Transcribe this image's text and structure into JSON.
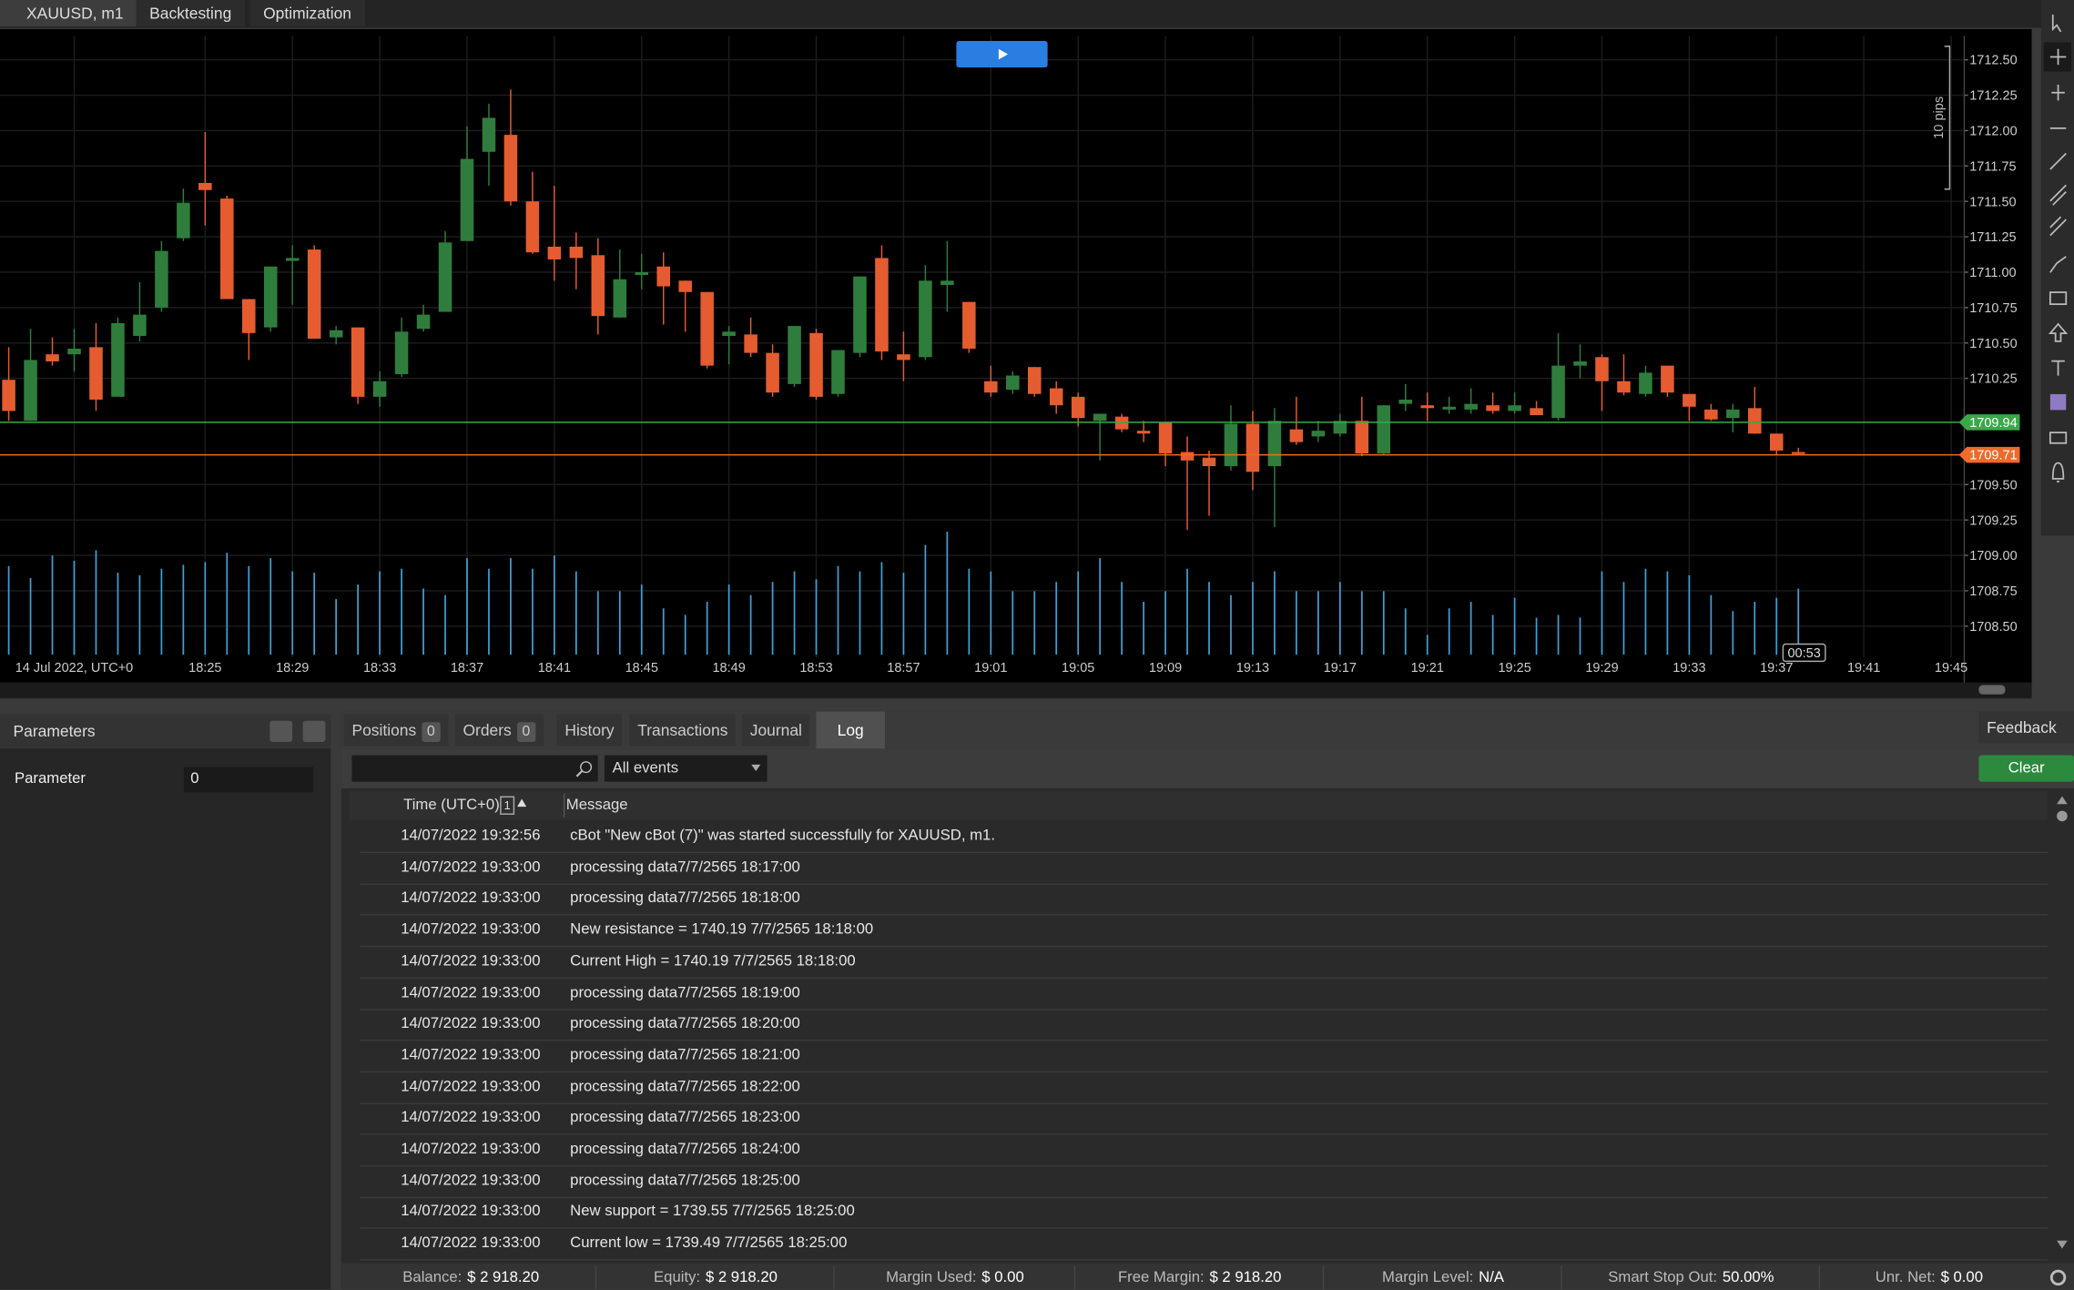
{
  "top_tabs": [
    "XAUUSD, m1",
    "Backtesting",
    "Optimization"
  ],
  "chart_data": {
    "type": "candlestick",
    "x": [
      "18:16",
      "18:17",
      "18:18",
      "18:19",
      "18:20",
      "18:21",
      "18:22",
      "18:23",
      "18:24",
      "18:25",
      "18:26",
      "18:27",
      "18:28",
      "18:29",
      "18:30",
      "18:31",
      "18:32",
      "18:33",
      "18:34",
      "18:35",
      "18:36",
      "18:37",
      "18:38",
      "18:39",
      "18:40",
      "18:41",
      "18:42",
      "18:43",
      "18:44",
      "18:45",
      "18:46",
      "18:47",
      "18:48",
      "18:49",
      "18:50",
      "18:51",
      "18:52",
      "18:53",
      "18:54",
      "18:55",
      "18:56",
      "18:57",
      "18:58",
      "18:59",
      "19:00",
      "19:01",
      "19:02",
      "19:03",
      "19:04",
      "19:05",
      "19:06",
      "19:07",
      "19:08",
      "19:09",
      "19:10",
      "19:11",
      "19:12",
      "19:13",
      "19:14",
      "19:15",
      "19:16",
      "19:17",
      "19:18",
      "19:19",
      "19:20",
      "19:21",
      "19:22",
      "19:23",
      "19:24",
      "19:25",
      "19:26",
      "19:27",
      "19:28",
      "19:29",
      "19:30",
      "19:31",
      "19:32",
      "19:33",
      "19:34",
      "19:35",
      "19:36",
      "19:37",
      "19:38"
    ],
    "open": [
      1710.24,
      1709.95,
      1710.42,
      1710.42,
      1710.47,
      1710.12,
      1710.55,
      1710.75,
      1711.24,
      1711.63,
      1711.52,
      1710.81,
      1710.61,
      1711.08,
      1711.16,
      1710.54,
      1710.61,
      1710.12,
      1710.28,
      1710.6,
      1710.72,
      1711.22,
      1711.85,
      1711.97,
      1711.5,
      1711.18,
      1711.18,
      1711.12,
      1710.68,
      1710.98,
      1711.04,
      1710.94,
      1710.86,
      1710.55,
      1710.56,
      1710.43,
      1710.21,
      1710.57,
      1710.14,
      1710.43,
      1711.1,
      1710.42,
      1710.4,
      1710.91,
      1710.79,
      1710.23,
      1710.17,
      1710.33,
      1710.18,
      1710.12,
      1709.95,
      1709.98,
      1709.88,
      1709.94,
      1709.73,
      1709.69,
      1709.63,
      1709.93,
      1709.63,
      1709.89,
      1709.84,
      1709.86,
      1709.95,
      1709.72,
      1710.07,
      1710.06,
      1710.03,
      1710.03,
      1710.06,
      1710.02,
      1710.04,
      1709.97,
      1710.34,
      1710.4,
      1710.23,
      1710.14,
      1710.34,
      1710.14,
      1710.03,
      1709.97,
      1710.04,
      1709.86,
      1709.73
    ],
    "high": [
      1710.47,
      1710.6,
      1710.54,
      1710.6,
      1710.64,
      1710.68,
      1710.93,
      1711.22,
      1711.59,
      1711.99,
      1711.54,
      1710.81,
      1711.04,
      1711.19,
      1711.19,
      1710.62,
      1710.61,
      1710.3,
      1710.68,
      1710.77,
      1711.29,
      1712.03,
      1712.19,
      1712.29,
      1711.71,
      1711.61,
      1711.28,
      1711.24,
      1711.16,
      1711.13,
      1711.14,
      1710.94,
      1710.86,
      1710.62,
      1710.68,
      1710.49,
      1710.62,
      1710.6,
      1710.45,
      1710.97,
      1711.19,
      1710.58,
      1711.05,
      1711.22,
      1710.79,
      1710.34,
      1710.3,
      1710.33,
      1710.23,
      1710.15,
      1710.0,
      1710.0,
      1709.95,
      1709.94,
      1709.84,
      1709.74,
      1710.06,
      1710.02,
      1710.04,
      1710.12,
      1709.95,
      1710.0,
      1710.12,
      1710.06,
      1710.21,
      1710.15,
      1710.12,
      1710.18,
      1710.15,
      1710.15,
      1710.09,
      1710.57,
      1710.49,
      1710.42,
      1710.42,
      1710.34,
      1710.34,
      1710.14,
      1710.07,
      1710.07,
      1710.19,
      1709.86,
      1709.76
    ],
    "low": [
      1709.95,
      1709.95,
      1710.34,
      1710.3,
      1710.02,
      1710.12,
      1710.51,
      1710.72,
      1711.22,
      1711.33,
      1710.81,
      1710.38,
      1710.58,
      1710.77,
      1710.53,
      1710.49,
      1710.07,
      1710.05,
      1710.26,
      1710.58,
      1710.72,
      1711.22,
      1711.61,
      1711.47,
      1711.13,
      1710.94,
      1710.88,
      1710.56,
      1710.68,
      1710.88,
      1710.63,
      1710.58,
      1710.32,
      1710.35,
      1710.4,
      1710.12,
      1710.19,
      1710.1,
      1710.12,
      1710.4,
      1710.38,
      1710.23,
      1710.38,
      1710.72,
      1710.43,
      1710.12,
      1710.14,
      1710.12,
      1710.0,
      1709.91,
      1709.67,
      1709.87,
      1709.8,
      1709.63,
      1709.18,
      1709.28,
      1709.6,
      1709.46,
      1709.2,
      1709.78,
      1709.8,
      1709.84,
      1709.7,
      1709.71,
      1710.02,
      1709.95,
      1710.0,
      1710.0,
      1710.0,
      1710.0,
      1709.99,
      1709.95,
      1710.25,
      1710.02,
      1710.13,
      1710.12,
      1710.12,
      1709.95,
      1709.95,
      1709.87,
      1709.86,
      1709.71,
      1709.71
    ],
    "close": [
      1710.02,
      1710.38,
      1710.37,
      1710.46,
      1710.1,
      1710.64,
      1710.7,
      1711.15,
      1711.49,
      1711.58,
      1710.81,
      1710.57,
      1711.04,
      1711.1,
      1710.53,
      1710.59,
      1710.12,
      1710.23,
      1710.58,
      1710.7,
      1711.21,
      1711.8,
      1712.09,
      1711.5,
      1711.14,
      1711.09,
      1711.1,
      1710.69,
      1710.95,
      1711.0,
      1710.9,
      1710.86,
      1710.34,
      1710.58,
      1710.43,
      1710.15,
      1710.62,
      1710.12,
      1710.45,
      1710.97,
      1710.44,
      1710.38,
      1710.94,
      1710.94,
      1710.46,
      1710.15,
      1710.27,
      1710.14,
      1710.06,
      1709.97,
      1710.0,
      1709.89,
      1709.86,
      1709.72,
      1709.67,
      1709.63,
      1709.93,
      1709.59,
      1709.95,
      1709.8,
      1709.88,
      1709.95,
      1709.72,
      1710.06,
      1710.1,
      1710.04,
      1710.05,
      1710.07,
      1710.02,
      1710.06,
      1709.99,
      1710.34,
      1710.37,
      1710.23,
      1710.15,
      1710.29,
      1710.15,
      1710.05,
      1709.96,
      1710.03,
      1709.86,
      1709.74,
      1709.72
    ],
    "volume": [
      67,
      58,
      75,
      71,
      79,
      62,
      60,
      65,
      68,
      70,
      77,
      67,
      73,
      63,
      62,
      42,
      53,
      63,
      65,
      50,
      45,
      73,
      65,
      73,
      65,
      75,
      63,
      48,
      48,
      53,
      35,
      30,
      40,
      53,
      45,
      55,
      63,
      57,
      67,
      63,
      70,
      62,
      83,
      93,
      65,
      63,
      48,
      48,
      55,
      63,
      73,
      55,
      40,
      48,
      65,
      55,
      45,
      55,
      63,
      48,
      48,
      55,
      48,
      48,
      35,
      15,
      35,
      40,
      30,
      43,
      28,
      30,
      28,
      63,
      55,
      65,
      63,
      60,
      45,
      33,
      40,
      43,
      50
    ],
    "up_color": "#2f7d3c",
    "down_color": "#e45c30",
    "volume_color": "#3f9fd4",
    "xlim": [
      "18:15:36",
      "19:45:36"
    ],
    "xticks": [
      {
        "value": "18:19",
        "label": "14 Jul 2022, UTC+0"
      },
      "18:25",
      "18:29",
      "18:33",
      "18:37",
      "18:41",
      "18:45",
      "18:49",
      "18:53",
      "18:57",
      "19:01",
      "19:05",
      "19:09",
      "19:13",
      "19:17",
      "19:21",
      "19:25",
      "19:29",
      "19:33",
      "19:37",
      "19:41",
      "19:45"
    ],
    "ylim": [
      1708.28,
      1712.67
    ],
    "yticks": [
      {
        "value": 1712.5,
        "label": "1712.50"
      },
      1712.25,
      {
        "value": 1712,
        "label": "1712.00"
      },
      1711.75,
      {
        "value": 1711.5,
        "label": "1711.50"
      },
      1711.25,
      {
        "value": 1711,
        "label": "1711.00"
      },
      1710.75,
      {
        "value": 1710.5,
        "label": "1710.50"
      },
      1710.25,
      {
        "value": 1709.5,
        "label": "1709.50"
      },
      1709.25,
      {
        "value": 1709,
        "label": "1709.00"
      },
      1708.75,
      {
        "value": 1708.5,
        "label": "1708.50"
      }
    ],
    "grid": true,
    "price_lines": [
      {
        "value": 1709.94,
        "color": "#3aa84a"
      },
      {
        "value": 1709.71,
        "color": "#f06a2a"
      }
    ],
    "scale_label": "10 pips",
    "countdown": "00:53"
  },
  "parameters": {
    "title": "Parameters",
    "rows": [
      {
        "label": "Parameter",
        "value": "0"
      }
    ]
  },
  "bottom_tabs": [
    {
      "label": "Positions",
      "count": 0
    },
    {
      "label": "Orders",
      "count": 0
    },
    {
      "label": "History"
    },
    {
      "label": "Transactions"
    },
    {
      "label": "Journal"
    },
    {
      "label": "Log"
    }
  ],
  "feedback": "Feedback",
  "log": {
    "filter": "All events",
    "clear": "Clear",
    "columns": [
      "Time (UTC+0)",
      "Message"
    ],
    "sort_index": 1,
    "rows": [
      [
        "14/07/2022 19:32:56",
        "cBot \"New cBot (7)\" was started successfully for XAUUSD, m1."
      ],
      [
        "14/07/2022 19:33:00",
        "processing data7/7/2565 18:17:00"
      ],
      [
        "14/07/2022 19:33:00",
        "processing data7/7/2565 18:18:00"
      ],
      [
        "14/07/2022 19:33:00",
        "New resistance = 1740.19 7/7/2565 18:18:00"
      ],
      [
        "14/07/2022 19:33:00",
        "Current High = 1740.19 7/7/2565 18:18:00"
      ],
      [
        "14/07/2022 19:33:00",
        "processing data7/7/2565 18:19:00"
      ],
      [
        "14/07/2022 19:33:00",
        "processing data7/7/2565 18:20:00"
      ],
      [
        "14/07/2022 19:33:00",
        "processing data7/7/2565 18:21:00"
      ],
      [
        "14/07/2022 19:33:00",
        "processing data7/7/2565 18:22:00"
      ],
      [
        "14/07/2022 19:33:00",
        "processing data7/7/2565 18:23:00"
      ],
      [
        "14/07/2022 19:33:00",
        "processing data7/7/2565 18:24:00"
      ],
      [
        "14/07/2022 19:33:00",
        "processing data7/7/2565 18:25:00"
      ],
      [
        "14/07/2022 19:33:00",
        "New support = 1739.55 7/7/2565 18:25:00"
      ],
      [
        "14/07/2022 19:33:00",
        "Current low = 1739.49 7/7/2565 18:25:00"
      ]
    ]
  },
  "status_bar": [
    {
      "label": "Balance:",
      "value": "$ 2 918.20"
    },
    {
      "label": "Equity:",
      "value": "$ 2 918.20"
    },
    {
      "label": "Margin Used:",
      "value": "$ 0.00"
    },
    {
      "label": "Free Margin:",
      "value": "$ 2 918.20"
    },
    {
      "label": "Margin Level:",
      "value": "N/A"
    },
    {
      "label": "Smart Stop Out:",
      "value": "50.00%"
    },
    {
      "label": "Unr. Net:",
      "value": "$ 0.00"
    }
  ]
}
